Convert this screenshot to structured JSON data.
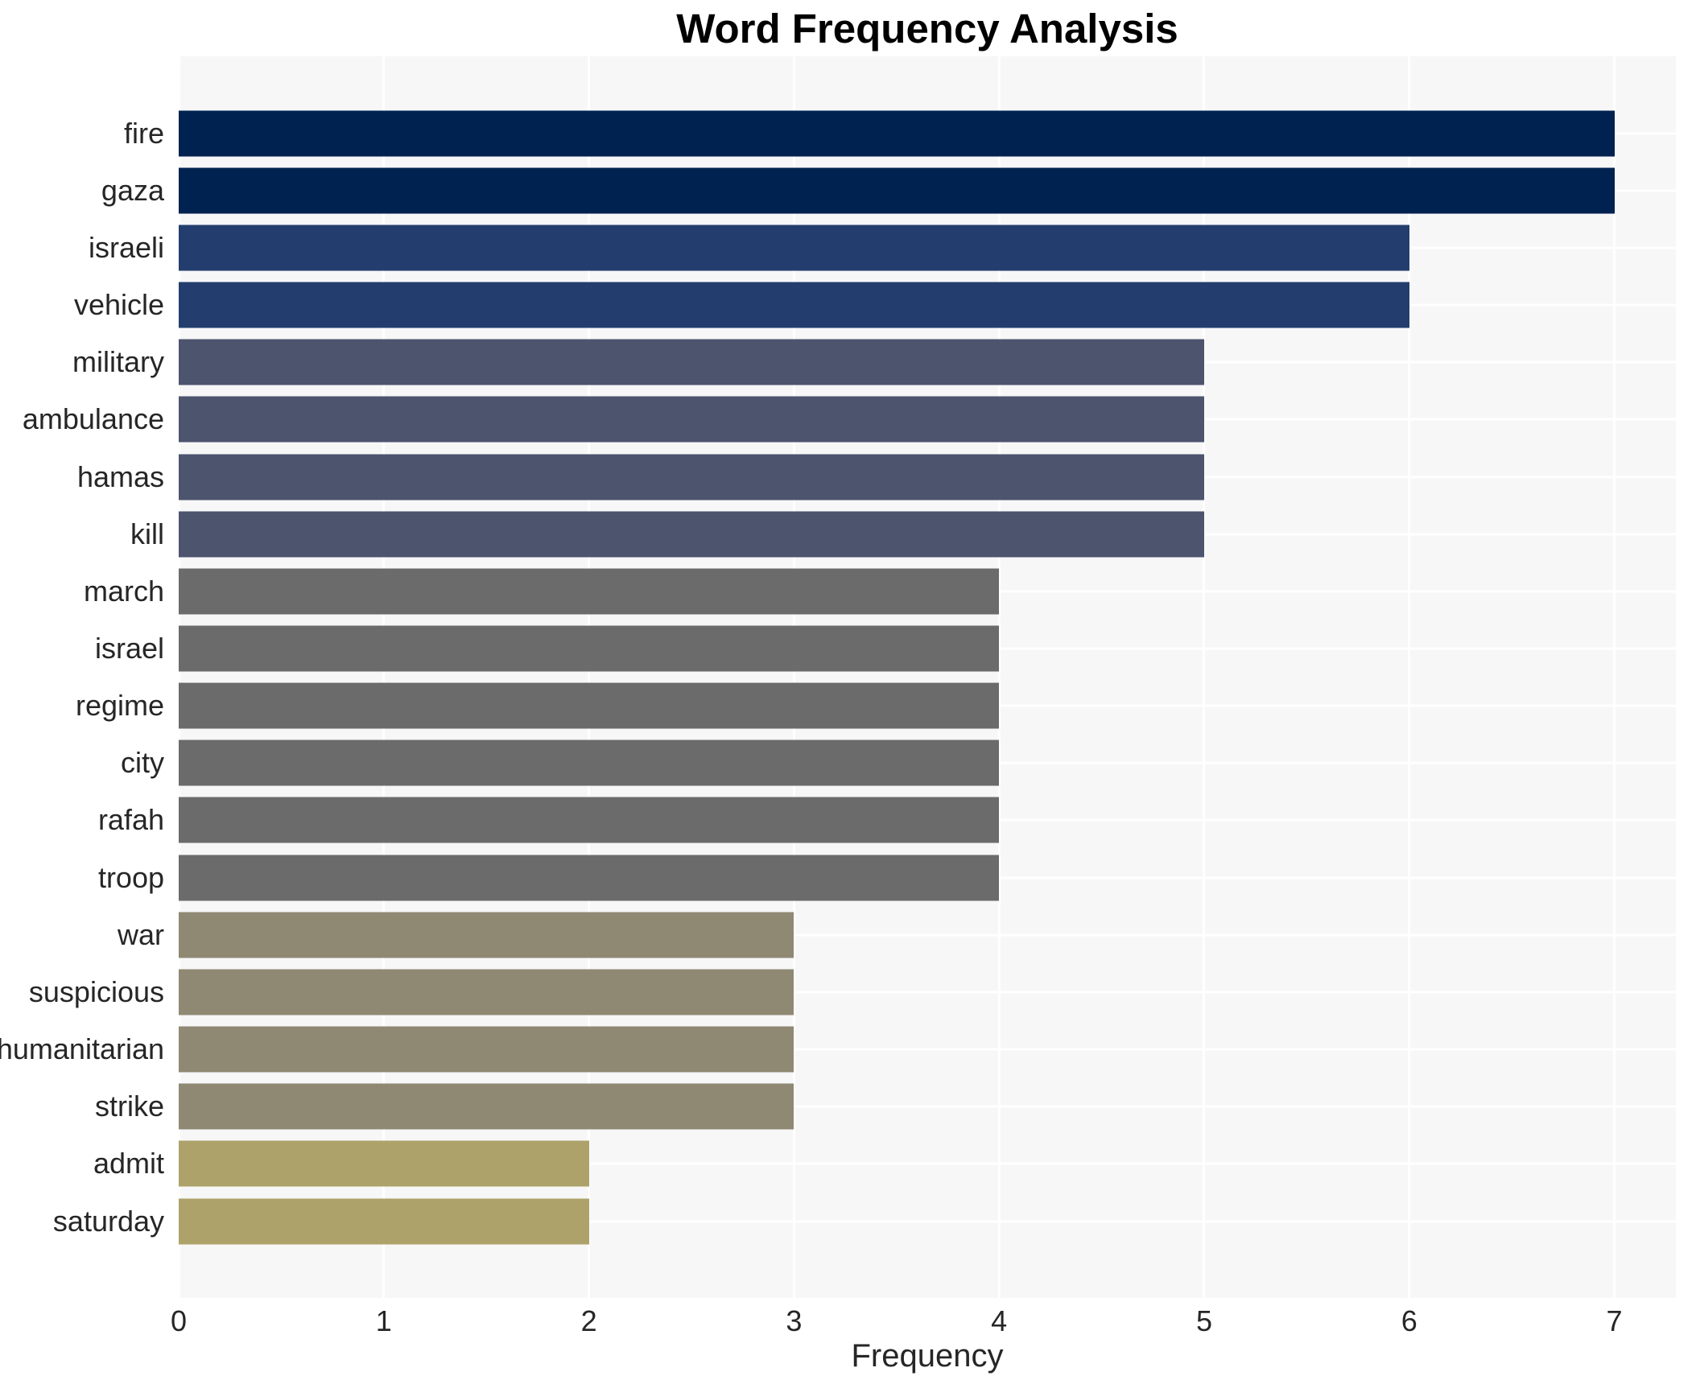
{
  "chart_data": {
    "type": "bar",
    "orientation": "horizontal",
    "title": "Word Frequency Analysis",
    "xlabel": "Frequency",
    "ylabel": "",
    "xlim": [
      0,
      7.3
    ],
    "xticks": [
      0,
      1,
      2,
      3,
      4,
      5,
      6,
      7
    ],
    "grid": true,
    "legend": "none",
    "categories": [
      "fire",
      "gaza",
      "israeli",
      "vehicle",
      "military",
      "ambulance",
      "hamas",
      "kill",
      "march",
      "israel",
      "regime",
      "city",
      "rafah",
      "troop",
      "war",
      "suspicious",
      "humanitarian",
      "strike",
      "admit",
      "saturday"
    ],
    "values": [
      7,
      7,
      6,
      6,
      5,
      5,
      5,
      5,
      4,
      4,
      4,
      4,
      4,
      4,
      3,
      3,
      3,
      3,
      2,
      2
    ],
    "bar_colors": [
      "#002250",
      "#002250",
      "#233e6e",
      "#233e6e",
      "#4c546e",
      "#4c546e",
      "#4c546e",
      "#4c546e",
      "#6b6b6c",
      "#6b6b6c",
      "#6b6b6c",
      "#6b6b6c",
      "#6b6b6c",
      "#6b6b6c",
      "#8f8873",
      "#8f8873",
      "#8f8873",
      "#8f8873",
      "#ada269",
      "#ada269"
    ]
  },
  "colors": {
    "figure_background": "#ffffff",
    "plot_background": "#f7f7f8",
    "gridline": "#ffffff",
    "title_text": "#000000",
    "axis_text": "#262626"
  }
}
